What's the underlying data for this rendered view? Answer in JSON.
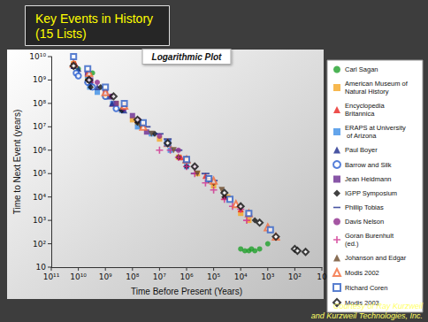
{
  "chart_data": {
    "type": "scatter",
    "title": "Key Events in History (15 Lists)",
    "subtitle": "Logarithmic Plot",
    "x_label": "Time Before Present (Years)",
    "y_label": "Time to Next Event (years)",
    "annotations": [
      "Courtesy of Ray Kurzweil",
      "and Kurzweil Technologies, Inc."
    ],
    "log": true,
    "grid": false,
    "legend": "right",
    "xlim": [
      100000000000.0,
      10
    ],
    "ylim": [
      10,
      10000000000.0
    ],
    "xticks": [
      {
        "value": 100000000000.0,
        "label": "10¹¹"
      },
      {
        "value": 10000000000.0,
        "label": "10¹⁰"
      },
      {
        "value": 1000000000.0,
        "label": "10⁹"
      },
      {
        "value": 100000000.0,
        "label": "10⁸"
      },
      {
        "value": 10000000.0,
        "label": "10⁷"
      },
      {
        "value": 1000000.0,
        "label": "10⁶"
      },
      {
        "value": 100000.0,
        "label": "10⁵"
      },
      {
        "value": 10000.0,
        "label": "10⁴"
      },
      {
        "value": 1000.0,
        "label": "10³"
      },
      {
        "value": 100,
        "label": "10²"
      },
      10
    ],
    "yticks": [
      10,
      {
        "value": 100,
        "label": "10²"
      },
      {
        "value": 1000.0,
        "label": "10³"
      },
      {
        "value": 10000.0,
        "label": "10⁴"
      },
      {
        "value": 100000.0,
        "label": "10⁵"
      },
      {
        "value": 1000000.0,
        "label": "10⁶"
      },
      {
        "value": 10000000.0,
        "label": "10⁷"
      },
      {
        "value": 100000000.0,
        "label": "10⁸"
      },
      {
        "value": 1000000000.0,
        "label": "10⁹"
      },
      {
        "value": 10000000000.0,
        "label": "10¹⁰"
      }
    ],
    "series": [
      {
        "name": "Carl Sagan",
        "color": "#1fa02a",
        "marker": "circle",
        "x": [
          15000000000.0,
          10000000000.0,
          4600000000.0,
          3000000000.0,
          10000.0,
          7000.0,
          5000.0,
          4000.0,
          3000.0,
          2000.0,
          1000.0
        ],
        "values": [
          4000000000.0,
          3000000000.0,
          1000000000.0,
          2000000000.0,
          60,
          50,
          50,
          60,
          50,
          60,
          100
        ]
      },
      {
        "name": "American Museum of Natural History",
        "color": "#f5a623",
        "marker": "square",
        "x": [
          15000000000.0,
          4500000000.0,
          1000000000.0,
          400000000.0,
          100000000.0,
          65000000.0,
          10000000.0,
          2000000.0,
          400000.0,
          100000.0,
          30000.0,
          10000.0,
          5000.0
        ],
        "values": [
          5000000000.0,
          1000000000.0,
          200000000.0,
          100000000.0,
          20000000.0,
          15000000.0,
          3000000.0,
          500000.0,
          100000.0,
          30000.0,
          10000.0,
          2000.0,
          1000.0
        ]
      },
      {
        "name": "Encyclopedia Britannica",
        "color": "#e8231f",
        "marker": "triangle",
        "x": [
          13000000000.0,
          4500000000.0,
          3500000000.0,
          550000000.0,
          250000000.0,
          65000000.0,
          5000000.0,
          1600000.0,
          200000.0,
          40000.0,
          10000.0
        ],
        "values": [
          5000000000.0,
          2000000000.0,
          1000000000.0,
          100000000.0,
          60000000.0,
          20000000.0,
          2000000.0,
          500000.0,
          80000.0,
          10000.0,
          3000.0
        ]
      },
      {
        "name": "ERAPS at University of Arizona",
        "color": "#3d8ee6",
        "marker": "square",
        "x": [
          15000000000.0,
          4600000000.0,
          3800000000.0,
          2000000000.0,
          540000000.0,
          250000000.0,
          65000000.0,
          20000000.0,
          4000000.0,
          1000000.0
        ],
        "values": [
          4000000000.0,
          1500000000.0,
          500000000.0,
          300000000.0,
          100000000.0,
          50000000.0,
          10000000.0,
          5000000.0,
          1000000.0,
          200000.0
        ]
      },
      {
        "name": "Paul Boyer",
        "color": "#1c2a8c",
        "marker": "triangle",
        "x": [
          15000000000.0,
          10000000000.0,
          4600000000.0,
          3500000000.0,
          2000000000.0,
          700000000.0,
          570000000.0,
          200000000.0,
          65000000.0
        ],
        "values": [
          4000000000.0,
          3000000000.0,
          1000000000.0,
          800000000.0,
          500000000.0,
          200000000.0,
          100000000.0,
          50000000.0,
          20000000.0
        ]
      },
      {
        "name": "Barrow and Silk",
        "color": "#2b5fd0",
        "marker": "open-circle",
        "x": [
          12000000000.0,
          10000000000.0,
          4500000000.0,
          3000000000.0,
          1000000000.0,
          400000000.0
        ],
        "values": [
          2000000000.0,
          1500000000.0,
          800000000.0,
          500000000.0,
          200000000.0,
          60000000.0
        ]
      },
      {
        "name": "Jean Heidmann",
        "color": "#6a2c91",
        "marker": "square",
        "x": [
          15000000000.0,
          4600000000.0,
          3500000000.0,
          1000000000.0,
          400000000.0,
          100000000.0,
          30000000.0
        ],
        "values": [
          4000000000.0,
          2000000000.0,
          1000000000.0,
          300000000.0,
          100000000.0,
          30000000.0,
          6000000.0
        ]
      },
      {
        "name": "IGPP Symposium",
        "color": "#111111",
        "marker": "diamond",
        "x": [
          15000000000.0,
          4500000000.0,
          3500000000.0,
          1500000000.0,
          600000000.0,
          250000000.0,
          65000000.0,
          15000000.0,
          2000000.0,
          1000000.0,
          100000.0,
          40000.0,
          10000.0,
          3000.0
        ],
        "values": [
          5000000000.0,
          1000000000.0,
          500000000.0,
          500000000.0,
          200000000.0,
          50000000.0,
          15000000.0,
          5000000.0,
          500000.0,
          200000.0,
          40000.0,
          10000.0,
          4000.0,
          1000.0
        ]
      },
      {
        "name": "Phillip Tobias",
        "color": "#1c2a8c",
        "marker": "dash",
        "x": [
          30000000.0,
          10000000.0,
          5000000.0,
          2000000.0,
          1000000.0,
          500000.0,
          200000.0,
          100000.0
        ],
        "values": [
          10000000.0,
          5000000.0,
          3000000.0,
          1000000.0,
          300000.0,
          100000.0,
          100000.0,
          50000.0
        ]
      },
      {
        "name": "Davis Nelson",
        "color": "#8e2c8c",
        "marker": "circle",
        "x": [
          4000000000.0,
          2000000000.0,
          600000000.0,
          200000000.0,
          60000000.0,
          10000000.0,
          2000000.0,
          500000.0
        ],
        "values": [
          1000000000.0,
          800000000.0,
          200000000.0,
          60000000.0,
          20000000.0,
          4000000.0,
          1000000.0,
          200000.0
        ]
      },
      {
        "name": "Goran Burenhult (ed.)",
        "color": "#d0308f",
        "marker": "plus",
        "x": [
          10000000.0,
          4000000.0,
          2000000.0,
          1000000.0,
          500000.0,
          200000.0,
          100000.0,
          40000.0,
          20000.0,
          10000.0,
          6000.0
        ],
        "values": [
          1000000.0,
          1000000.0,
          500000.0,
          200000.0,
          100000.0,
          40000.0,
          20000.0,
          8000.0,
          4000.0,
          3000.0,
          1000.0
        ]
      },
      {
        "name": "Johanson and Edgar",
        "color": "#6b4a2b",
        "marker": "triangle-down",
        "x": [
          50000000.0,
          20000000.0,
          5000000.0,
          3000000.0,
          1000000.0,
          400000.0,
          150000.0,
          50000.0
        ],
        "values": [
          10000000.0,
          5000000.0,
          2000000.0,
          1000000.0,
          400000.0,
          100000.0,
          50000.0,
          20000.0
        ]
      },
      {
        "name": "Modis 2002",
        "color": "#f26a3a",
        "marker": "open-triangle",
        "x": [
          15000000000.0,
          4000000000.0,
          1000000000.0,
          200000000.0,
          40000000.0,
          5000000.0,
          1000000.0,
          100000.0,
          15000.0,
          5000.0,
          1000.0,
          500
        ],
        "values": [
          5000000000.0,
          2000000000.0,
          300000000.0,
          80000000.0,
          10000000.0,
          2000000.0,
          400000.0,
          50000.0,
          5000.0,
          2000.0,
          500,
          200
        ]
      },
      {
        "name": "Richard Coren",
        "color": "#2f5fc4",
        "marker": "open-square",
        "x": [
          15000000000.0,
          4500000000.0,
          1000000000.0,
          200000000.0,
          40000000.0,
          5000000.0,
          1000000.0,
          150000.0,
          25000.0,
          5000.0,
          800
        ],
        "values": [
          10000000000.0,
          3000000000.0,
          500000000.0,
          100000000.0,
          15000000.0,
          2000000.0,
          400000.0,
          60000.0,
          8000.0,
          2000.0,
          400
        ]
      },
      {
        "name": "Modis 2003",
        "color": "#111111",
        "marker": "open-diamond",
        "x": [
          15000000000.0,
          4000000000.0,
          500000000.0,
          65000000.0,
          5000000.0,
          500000.0,
          40000.0,
          10000.0,
          2000.0,
          500,
          100,
          80,
          40
        ],
        "values": [
          4000000000.0,
          1000000000.0,
          200000000.0,
          20000000.0,
          2000000.0,
          200000.0,
          15000.0,
          4000.0,
          800,
          200,
          60,
          50,
          45
        ]
      }
    ]
  }
}
